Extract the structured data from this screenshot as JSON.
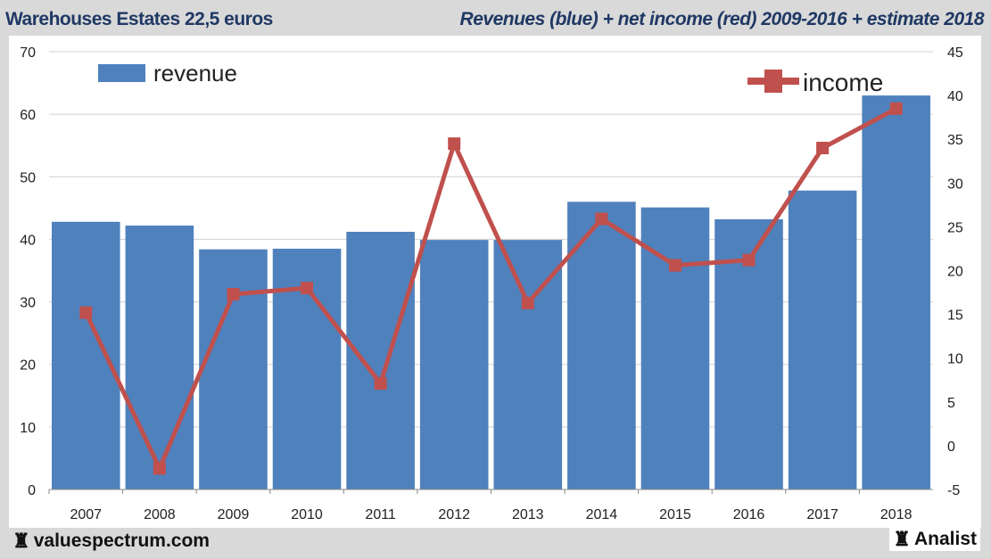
{
  "header": {
    "left_title": "Warehouses Estates 22,5 euros",
    "right_title": "Revenues (blue) + net income (red) 2009-2016 + estimate 2018"
  },
  "footer": {
    "left_brand": "valuespectrum.com",
    "right_brand": "Analist",
    "brand_icon": "chess-rook-icon"
  },
  "chart_data": {
    "type": "bar+line",
    "categories": [
      "2007",
      "2008",
      "2009",
      "2010",
      "2011",
      "2012",
      "2013",
      "2014",
      "2015",
      "2016",
      "2017",
      "2018"
    ],
    "series": [
      {
        "name": "revenue",
        "type": "bar",
        "axis": "left",
        "color": "#4f81bd",
        "values": [
          42.8,
          42.2,
          38.4,
          38.5,
          41.2,
          39.9,
          39.9,
          46.0,
          45.1,
          43.2,
          47.8,
          63.0
        ]
      },
      {
        "name": "income",
        "type": "line",
        "axis": "right",
        "color": "#c0504d",
        "values": [
          15.2,
          -2.6,
          17.3,
          18.0,
          7.1,
          34.5,
          16.3,
          25.9,
          20.6,
          21.2,
          34.0,
          38.5
        ]
      }
    ],
    "y_left": {
      "ylim": [
        0,
        70
      ],
      "ticks": [
        0,
        10,
        20,
        30,
        40,
        50,
        60,
        70
      ]
    },
    "y_right": {
      "ylim": [
        -5,
        45
      ],
      "ticks": [
        -5,
        0,
        5,
        10,
        15,
        20,
        25,
        30,
        35,
        40,
        45
      ]
    },
    "grid": true,
    "legend": [
      {
        "label": "revenue",
        "placement": "top-left"
      },
      {
        "label": "income",
        "placement": "top-right"
      }
    ]
  }
}
